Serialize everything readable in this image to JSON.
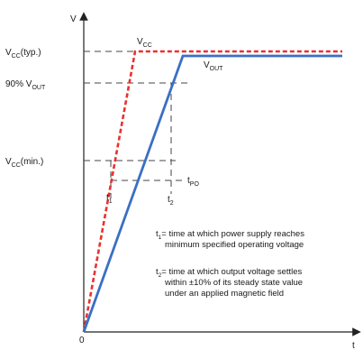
{
  "axes": {
    "y_label": "V",
    "x_label": "t",
    "origin_label": "0"
  },
  "levels": {
    "vcc_typ": {
      "label": "V",
      "sub": "CC",
      "suffix": "(typ.)"
    },
    "pct90_vout": {
      "prefix": "90% V",
      "sub": "OUT"
    },
    "vcc_min": {
      "label": "V",
      "sub": "CC",
      "suffix": "(min.)"
    }
  },
  "curves": {
    "vcc": {
      "label": "V",
      "sub": "CC",
      "color": "#e8312f"
    },
    "vout": {
      "label": "V",
      "sub": "OUT",
      "color": "#3a6fc4"
    }
  },
  "markers": {
    "t1": {
      "label": "t",
      "sub": "1"
    },
    "t2": {
      "label": "t",
      "sub": "2"
    },
    "tpo": {
      "label": "t",
      "sub": "PO"
    }
  },
  "notes": {
    "t1_text_line1": "= time at which power supply reaches",
    "t1_text_line2": "minimum specified operating voltage",
    "t2_text_line1": "= time at which output voltage settles",
    "t2_text_line2": "within ±10% of its steady state value",
    "t2_text_line3": "under an applied magnetic field"
  }
}
